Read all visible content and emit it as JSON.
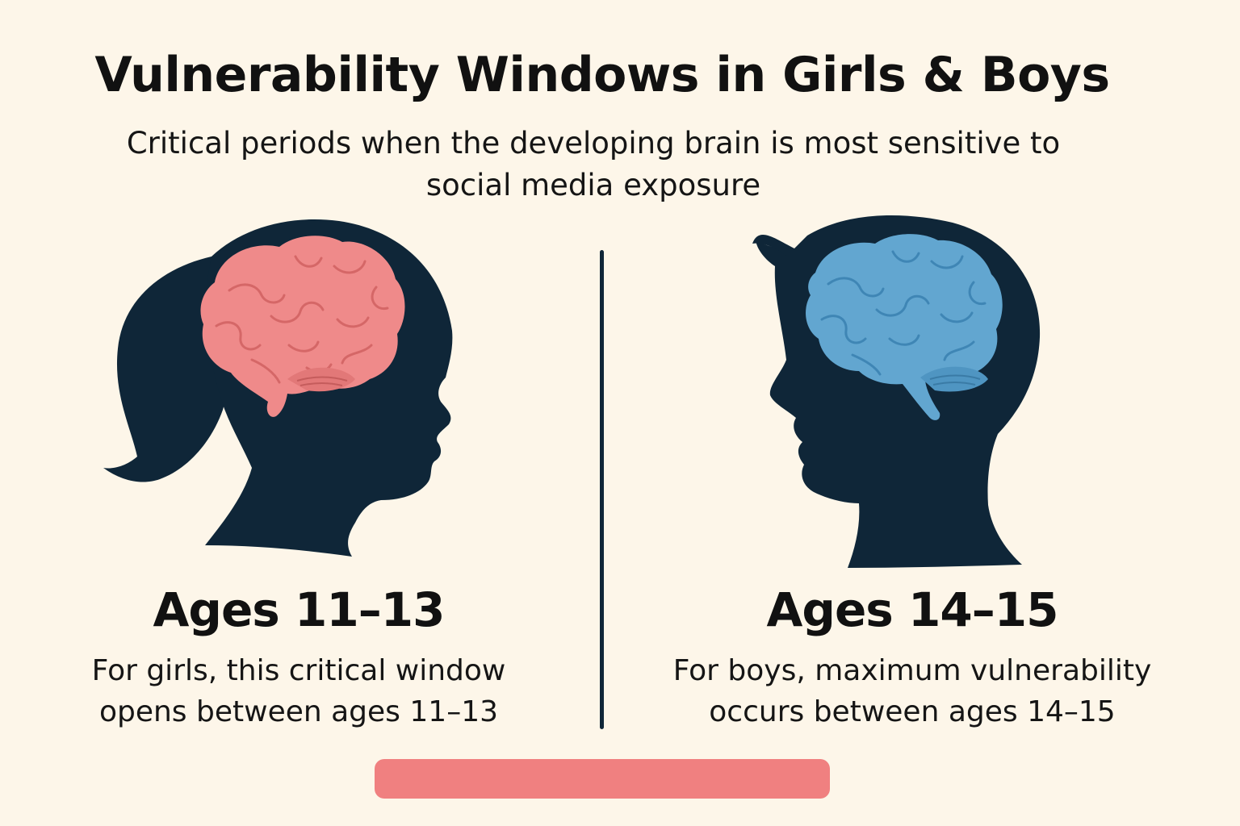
{
  "header": {
    "title": "Vulnerability Windows in Girls & Boys",
    "subtitle": "Critical periods when the developing brain is most sensitive to social media exposure"
  },
  "girl": {
    "icon": "girl-head-silhouette-icon",
    "brain_icon": "pink-brain-icon",
    "age_label": "Ages 11–13",
    "description": "For girls, this critical window opens between ages 11–13"
  },
  "boy": {
    "icon": "boy-head-silhouette-icon",
    "brain_icon": "blue-brain-icon",
    "age_label": "Ages 14–15",
    "description": "For boys, maximum vulnerability occurs between ages 14–15"
  },
  "colors": {
    "background": "#fdf6e9",
    "silhouette": "#0f2638",
    "girl_brain": "#ef8a8a",
    "boy_brain": "#62a6d0",
    "bar": "#f08080"
  }
}
